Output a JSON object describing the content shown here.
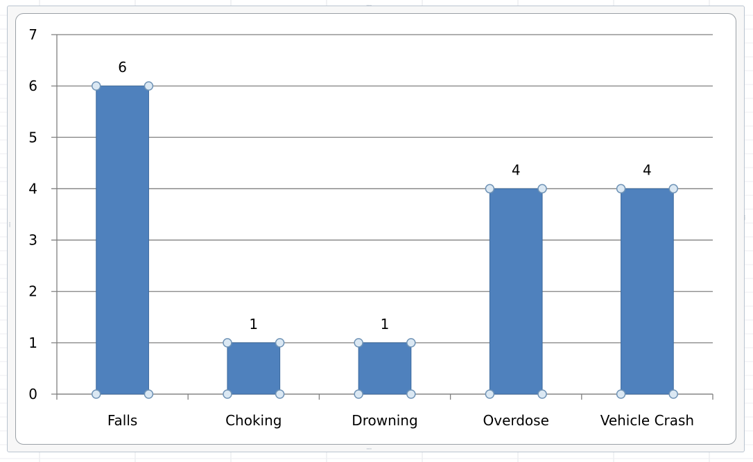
{
  "colors": {
    "bar_fill": "#4f81bd",
    "bar_stroke": "#3c6a9e",
    "gridline": "#7f7f7f",
    "axis": "#7f7f7f",
    "handle_fill": "#dbe8f3",
    "handle_stroke": "#6f93b6"
  },
  "chart_data": {
    "type": "bar",
    "title": "",
    "xlabel": "",
    "ylabel": "",
    "categories": [
      "Falls",
      "Choking",
      "Drowning",
      "Overdose",
      "Vehicle Crash"
    ],
    "values": [
      6,
      1,
      1,
      4,
      4
    ],
    "data_labels": [
      "6",
      "1",
      "1",
      "4",
      "4"
    ],
    "ylim": [
      0,
      7
    ],
    "y_ticks": [
      "0",
      "1",
      "2",
      "3",
      "4",
      "5",
      "6",
      "7"
    ],
    "grid": true,
    "legend": "none",
    "selected": true
  }
}
